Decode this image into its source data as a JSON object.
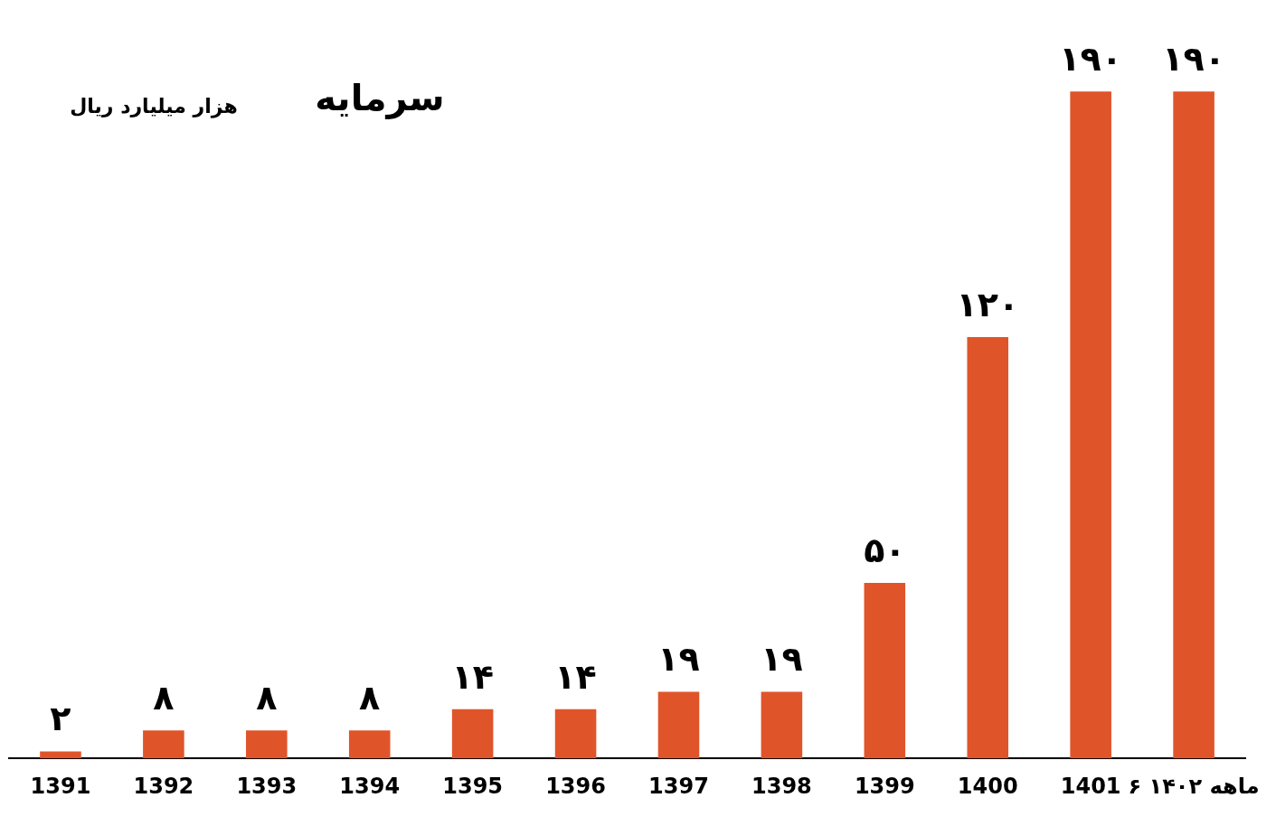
{
  "chart_data": {
    "type": "bar",
    "title": "سرمایه",
    "subtitle": "هزار میلیارد ریال",
    "categories": [
      "1391",
      "1392",
      "1393",
      "1394",
      "1395",
      "1396",
      "1397",
      "1398",
      "1399",
      "1400",
      "1401",
      "۶ ماهه ۱۴۰۲"
    ],
    "values": [
      2,
      8,
      8,
      8,
      14,
      14,
      19,
      19,
      50,
      120,
      190,
      190
    ],
    "value_labels": [
      "۲",
      "۸",
      "۸",
      "۸",
      "۱۴",
      "۱۴",
      "۱۹",
      "۱۹",
      "۵۰",
      "۱۲۰",
      "۱۹۰",
      "۱۹۰"
    ],
    "color": "#e0542a",
    "grid": false,
    "legend": false
  }
}
